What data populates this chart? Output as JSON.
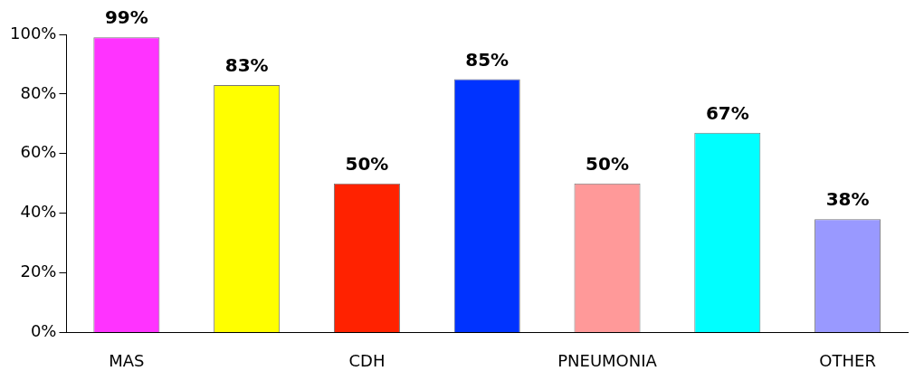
{
  "chart_data": {
    "type": "bar",
    "categories": [
      "MAS",
      null,
      "CDH",
      null,
      "PNEUMONIA",
      null,
      "OTHER"
    ],
    "values": [
      99,
      83,
      50,
      85,
      50,
      67,
      38
    ],
    "colors": [
      "#ff33ff",
      "#ffff00",
      "#ff2200",
      "#0033ff",
      "#ff9999",
      "#00ffff",
      "#9999ff"
    ],
    "value_labels": [
      "99%",
      "83%",
      "50%",
      "85%",
      "50%",
      "67%",
      "38%"
    ],
    "ylim": [
      0,
      100
    ],
    "yticks": [
      {
        "value": 0,
        "label": "0%"
      },
      {
        "value": 20,
        "label": "20%"
      },
      {
        "value": 40,
        "label": "40%"
      },
      {
        "value": 60,
        "label": "60%"
      },
      {
        "value": 80,
        "label": "80%"
      },
      {
        "value": 100,
        "label": "100%"
      }
    ],
    "grid": false,
    "legend": false
  }
}
